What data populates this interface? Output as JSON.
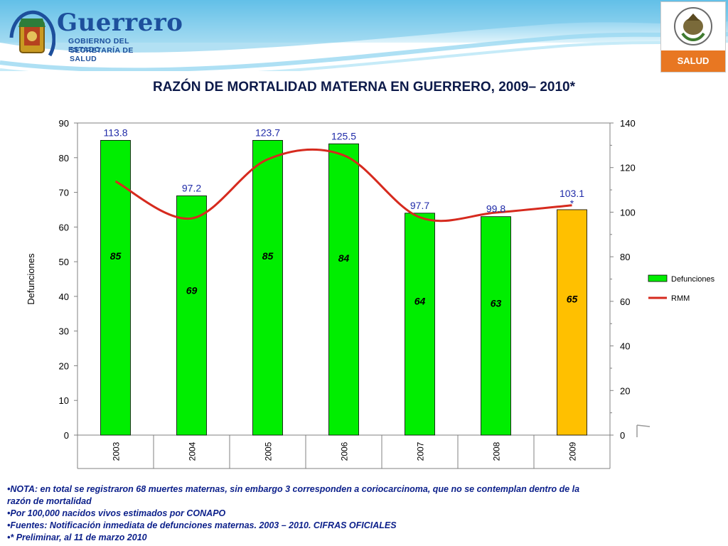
{
  "header": {
    "brand_name": "Guerrero",
    "brand_sub1": "GOBIERNO DEL ESTADO",
    "brand_sub2": "SECRETARÍA DE SALUD",
    "right_logo_label": "SALUD"
  },
  "page_title": "RAZÓN DE MORTALIDAD MATERNA EN GUERRERO, 2009– 2010*",
  "chart_data": {
    "type": "bar",
    "categories": [
      "2003",
      "2004",
      "2005",
      "2006",
      "2007",
      "2008",
      "2009"
    ],
    "series": [
      {
        "name": "Defunciones",
        "kind": "bar",
        "axis": "left",
        "values": [
          85,
          69,
          85,
          84,
          64,
          63,
          65
        ],
        "data_labels": [
          "85",
          "69",
          "85",
          "84",
          "64",
          "63",
          "65"
        ]
      },
      {
        "name": "RMM",
        "kind": "line",
        "axis": "right",
        "values": [
          113.8,
          97.2,
          123.7,
          125.5,
          97.7,
          99.8,
          103.1
        ],
        "data_labels": [
          "113.8",
          "97.2",
          "123.7",
          "125.5",
          "97.7",
          "99.8",
          "103.1\n*"
        ]
      }
    ],
    "ylabel": "Defunciones",
    "ylim": [
      0,
      90
    ],
    "yticks": [
      "0",
      "10",
      "20",
      "30",
      "40",
      "50",
      "60",
      "70",
      "80",
      "90"
    ],
    "y2lim": [
      0,
      140
    ],
    "y2ticks": [
      "0",
      "20",
      "40",
      "60",
      "80",
      "100",
      "120",
      "140"
    ],
    "legend_position": "right",
    "grid": false,
    "colors": {
      "bar": "#00ee00",
      "bar_highlight": "#ffc000",
      "line": "#d62a1e",
      "line_label": "#1f2aa8"
    }
  },
  "notes": [
    "•NOTA: en total se registraron 68 muertes maternas, sin embargo 3 corresponden a coriocarcinoma, que no se contemplan dentro de la",
    "razón de mortalidad",
    "•Por 100,000 nacidos vivos estimados por CONAPO",
    "•Fuentes: Notificación inmediata de defunciones maternas. 2003 – 2010. CIFRAS OFICIALES",
    "•* Preliminar, al 11 de marzo 2010"
  ]
}
